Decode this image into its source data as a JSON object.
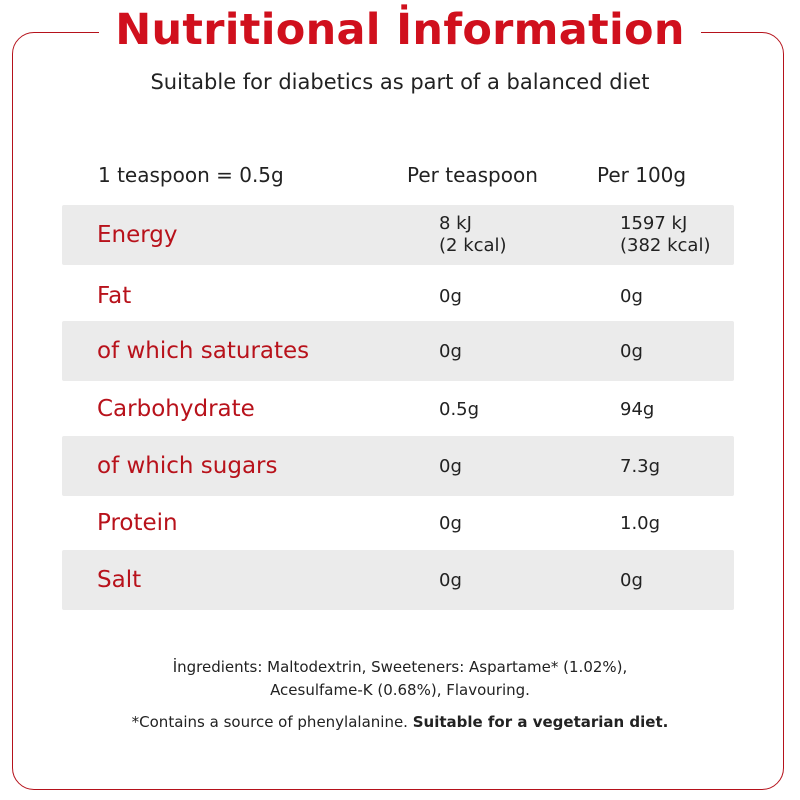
{
  "title": "Nutritional İnformation",
  "subtitle": "Suitable for diabetics as part of a balanced diet",
  "header": {
    "serving": "1 teaspoon = 0.5g",
    "col_per_teaspoon": "Per teaspoon",
    "col_per_100g": "Per 100g"
  },
  "rows": [
    {
      "label": "Energy",
      "per_teaspoon": [
        "8 kJ",
        "(2 kcal)"
      ],
      "per_100g": [
        "1597 kJ",
        "(382 kcal)"
      ]
    },
    {
      "label": "Fat",
      "per_teaspoon": "0g",
      "per_100g": "0g"
    },
    {
      "label": "of which saturates",
      "per_teaspoon": "0g",
      "per_100g": "0g"
    },
    {
      "label": "Carbohydrate",
      "per_teaspoon": "0.5g",
      "per_100g": "94g"
    },
    {
      "label": "of which sugars",
      "per_teaspoon": "0g",
      "per_100g": "7.3g"
    },
    {
      "label": "Protein",
      "per_teaspoon": "0g",
      "per_100g": "1.0g"
    },
    {
      "label": "Salt",
      "per_teaspoon": "0g",
      "per_100g": "0g"
    }
  ],
  "ingredients": {
    "line1": "İngredients: Maltodextrin, Sweeteners: Aspartame* (1.02%),",
    "line2": "Acesulfame-K (0.68%), Flavouring."
  },
  "footnote": {
    "text": "*Contains a source of phenylalanine. ",
    "bold": "Suitable for a vegetarian diet."
  },
  "colors": {
    "accent": "#d0101d",
    "label": "#b8121b",
    "row_shade": "#ebebeb",
    "text": "#222222"
  }
}
